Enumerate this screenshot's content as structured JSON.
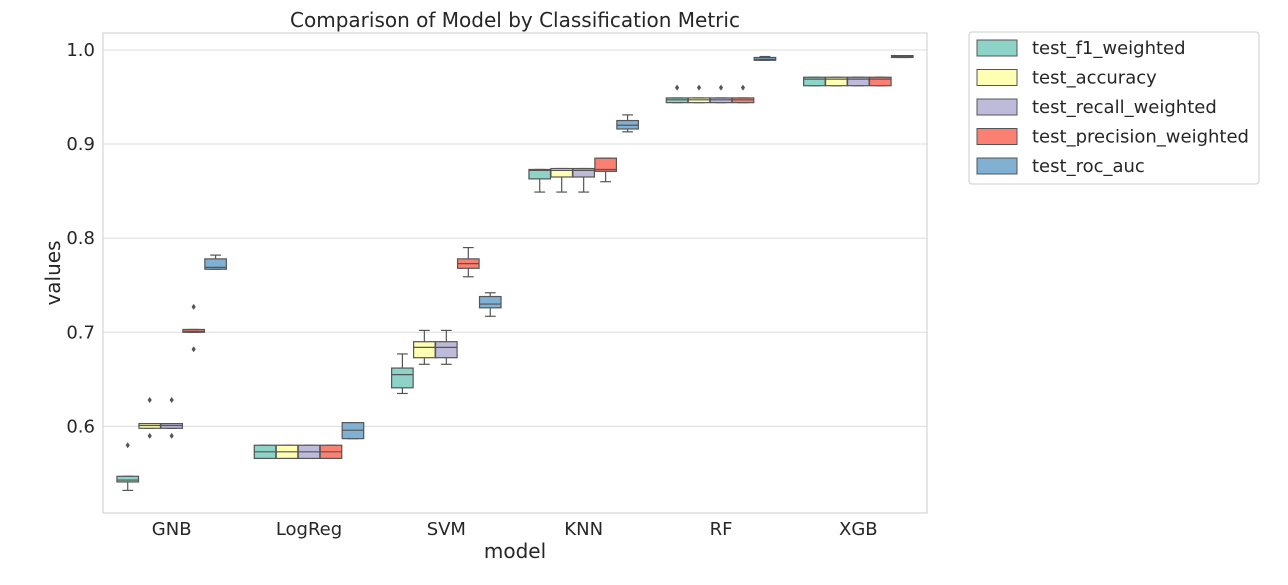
{
  "chart_data": {
    "type": "box",
    "title": "Comparison of Model by Classification Metric",
    "xlabel": "model",
    "ylabel": "values",
    "ylim": [
      0.508,
      1.018
    ],
    "yticks": [
      0.6,
      0.7,
      0.8,
      0.9,
      1.0
    ],
    "ytick_labels": [
      "0.6",
      "0.7",
      "0.8",
      "0.9",
      "1.0"
    ],
    "grid": true,
    "legend_position": "outside-top-right",
    "categories": [
      "GNB",
      "LogReg",
      "SVM",
      "KNN",
      "RF",
      "XGB"
    ],
    "series": [
      {
        "name": "test_f1_weighted",
        "color": "#8dd3c7",
        "boxes": [
          {
            "whislo": 0.532,
            "q1": 0.541,
            "med": 0.543,
            "q3": 0.547,
            "whishi": 0.547,
            "fliers": [
              0.58
            ]
          },
          {
            "whislo": 0.566,
            "q1": 0.566,
            "med": 0.573,
            "q3": 0.58,
            "whishi": 0.58,
            "fliers": []
          },
          {
            "whislo": 0.635,
            "q1": 0.641,
            "med": 0.655,
            "q3": 0.662,
            "whishi": 0.677,
            "fliers": []
          },
          {
            "whislo": 0.849,
            "q1": 0.863,
            "med": 0.872,
            "q3": 0.873,
            "whishi": 0.873,
            "fliers": []
          },
          {
            "whislo": 0.944,
            "q1": 0.944,
            "med": 0.947,
            "q3": 0.949,
            "whishi": 0.949,
            "fliers": [
              0.96
            ]
          },
          {
            "whislo": 0.962,
            "q1": 0.962,
            "med": 0.969,
            "q3": 0.971,
            "whishi": 0.971,
            "fliers": []
          }
        ]
      },
      {
        "name": "test_accuracy",
        "color": "#ffffb3",
        "boxes": [
          {
            "whislo": 0.598,
            "q1": 0.598,
            "med": 0.601,
            "q3": 0.603,
            "whishi": 0.603,
            "fliers": [
              0.628,
              0.59
            ]
          },
          {
            "whislo": 0.566,
            "q1": 0.566,
            "med": 0.573,
            "q3": 0.58,
            "whishi": 0.58,
            "fliers": []
          },
          {
            "whislo": 0.666,
            "q1": 0.673,
            "med": 0.684,
            "q3": 0.69,
            "whishi": 0.702,
            "fliers": []
          },
          {
            "whislo": 0.849,
            "q1": 0.865,
            "med": 0.872,
            "q3": 0.874,
            "whishi": 0.874,
            "fliers": []
          },
          {
            "whislo": 0.944,
            "q1": 0.944,
            "med": 0.947,
            "q3": 0.949,
            "whishi": 0.949,
            "fliers": [
              0.96
            ]
          },
          {
            "whislo": 0.962,
            "q1": 0.962,
            "med": 0.969,
            "q3": 0.971,
            "whishi": 0.971,
            "fliers": []
          }
        ]
      },
      {
        "name": "test_recall_weighted",
        "color": "#bebada",
        "boxes": [
          {
            "whislo": 0.598,
            "q1": 0.598,
            "med": 0.601,
            "q3": 0.603,
            "whishi": 0.603,
            "fliers": [
              0.628,
              0.59
            ]
          },
          {
            "whislo": 0.566,
            "q1": 0.566,
            "med": 0.573,
            "q3": 0.58,
            "whishi": 0.58,
            "fliers": []
          },
          {
            "whislo": 0.666,
            "q1": 0.673,
            "med": 0.684,
            "q3": 0.69,
            "whishi": 0.702,
            "fliers": []
          },
          {
            "whislo": 0.849,
            "q1": 0.865,
            "med": 0.872,
            "q3": 0.874,
            "whishi": 0.874,
            "fliers": []
          },
          {
            "whislo": 0.944,
            "q1": 0.944,
            "med": 0.947,
            "q3": 0.949,
            "whishi": 0.949,
            "fliers": [
              0.96
            ]
          },
          {
            "whislo": 0.962,
            "q1": 0.962,
            "med": 0.969,
            "q3": 0.971,
            "whishi": 0.971,
            "fliers": []
          }
        ]
      },
      {
        "name": "test_precision_weighted",
        "color": "#fb8072",
        "boxes": [
          {
            "whislo": 0.7,
            "q1": 0.7,
            "med": 0.701,
            "q3": 0.703,
            "whishi": 0.703,
            "fliers": [
              0.727,
              0.682
            ]
          },
          {
            "whislo": 0.566,
            "q1": 0.566,
            "med": 0.573,
            "q3": 0.58,
            "whishi": 0.58,
            "fliers": []
          },
          {
            "whislo": 0.759,
            "q1": 0.768,
            "med": 0.773,
            "q3": 0.778,
            "whishi": 0.79,
            "fliers": []
          },
          {
            "whislo": 0.86,
            "q1": 0.871,
            "med": 0.873,
            "q3": 0.885,
            "whishi": 0.885,
            "fliers": []
          },
          {
            "whislo": 0.944,
            "q1": 0.944,
            "med": 0.947,
            "q3": 0.949,
            "whishi": 0.949,
            "fliers": [
              0.96
            ]
          },
          {
            "whislo": 0.962,
            "q1": 0.962,
            "med": 0.969,
            "q3": 0.971,
            "whishi": 0.971,
            "fliers": []
          }
        ]
      },
      {
        "name": "test_roc_auc",
        "color": "#80b1d3",
        "boxes": [
          {
            "whislo": 0.767,
            "q1": 0.767,
            "med": 0.769,
            "q3": 0.778,
            "whishi": 0.782,
            "fliers": []
          },
          {
            "whislo": 0.587,
            "q1": 0.587,
            "med": 0.596,
            "q3": 0.604,
            "whishi": 0.604,
            "fliers": []
          },
          {
            "whislo": 0.717,
            "q1": 0.726,
            "med": 0.73,
            "q3": 0.738,
            "whishi": 0.742,
            "fliers": []
          },
          {
            "whislo": 0.913,
            "q1": 0.916,
            "med": 0.92,
            "q3": 0.925,
            "whishi": 0.931,
            "fliers": []
          },
          {
            "whislo": 0.989,
            "q1": 0.989,
            "med": 0.99,
            "q3": 0.992,
            "whishi": 0.993,
            "fliers": []
          },
          {
            "whislo": 0.992,
            "q1": 0.992,
            "med": 0.993,
            "q3": 0.994,
            "whishi": 0.994,
            "fliers": []
          }
        ]
      }
    ]
  }
}
